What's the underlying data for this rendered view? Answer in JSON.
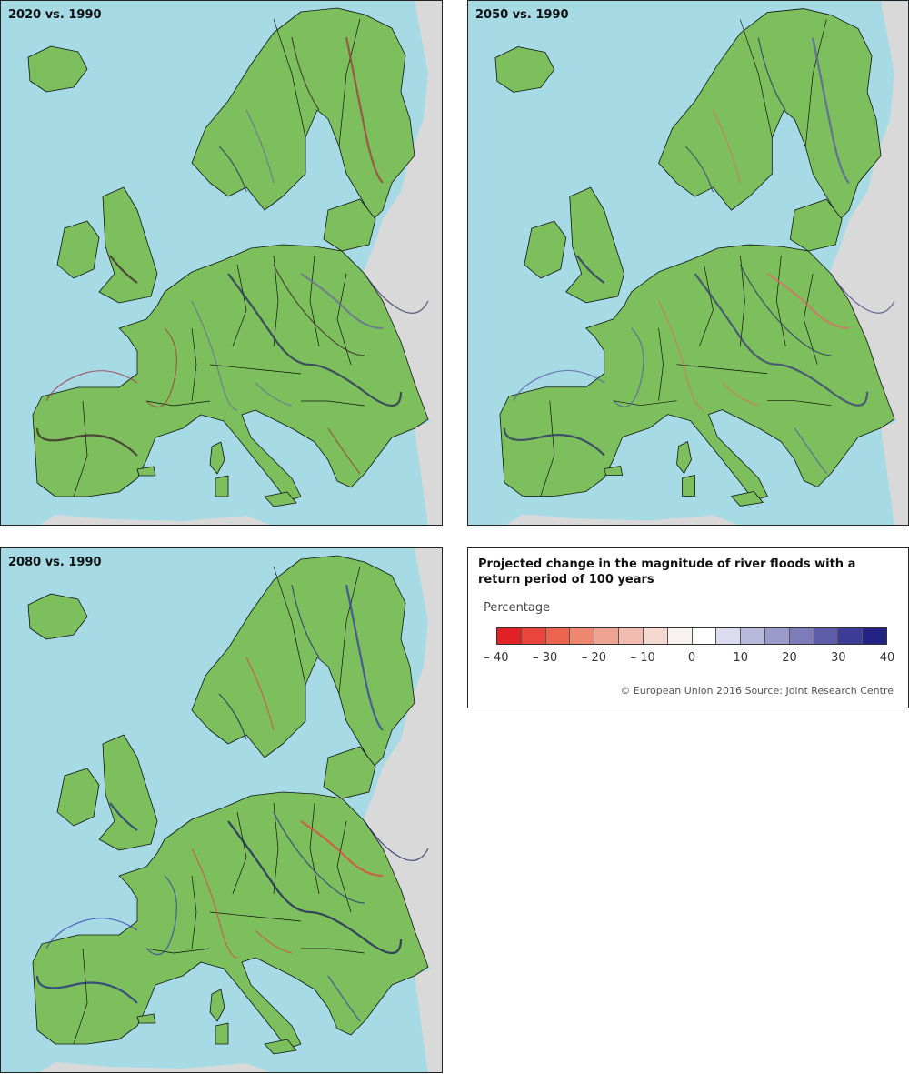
{
  "panels": [
    {
      "id": "p1",
      "title": "2020 vs. 1990",
      "river_tint": [
        "#3a1f2a",
        "#a03840",
        "#6a6a9a",
        "#2a2a5a"
      ]
    },
    {
      "id": "p2",
      "title": "2050 vs. 1990",
      "river_tint": [
        "#2a2a6a",
        "#5858a8",
        "#e06a6a",
        "#3a3a7a"
      ]
    },
    {
      "id": "p3",
      "title": "2080 vs. 1990",
      "river_tint": [
        "#222a80",
        "#3a3aa8",
        "#e84040",
        "#1a1a5a"
      ]
    }
  ],
  "colors": {
    "sea": "#a6dbe6",
    "land": "#7cbf5c",
    "no_data": "#d9d9d9",
    "border": "#111111"
  },
  "legend": {
    "title": "Projected change in the magnitude of river floods with a return period of 100 years",
    "unit_label": "Percentage",
    "swatches": [
      "#e32227",
      "#e8453c",
      "#ec6450",
      "#ee8670",
      "#efa393",
      "#f2bdb0",
      "#f5d8cf",
      "#f7f1ef",
      "#ffffff",
      "#dcdcf0",
      "#b9b9de",
      "#9a9acc",
      "#7c7cba",
      "#5c5ca8",
      "#3d3d97",
      "#232383"
    ],
    "ticks": [
      "– 40",
      "– 30",
      "– 20",
      "– 10",
      "0",
      "10",
      "20",
      "30",
      "40"
    ],
    "source": "© European Union 2016 Source: Joint Research Centre"
  }
}
